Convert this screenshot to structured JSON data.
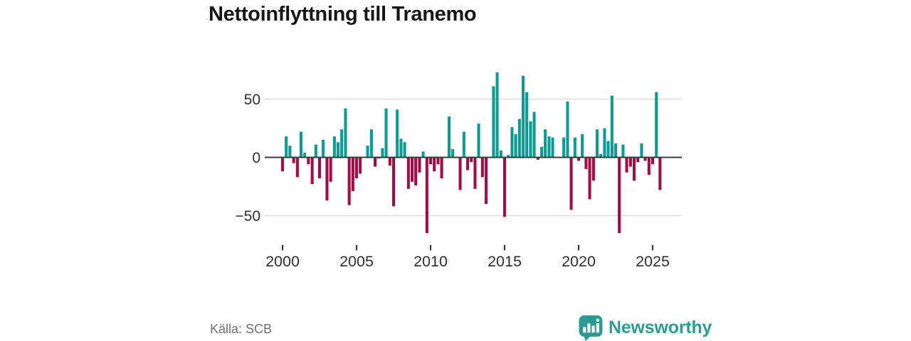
{
  "title": "Nettoinflyttning till Tranemo",
  "footer": {
    "source": "Källa: SCB",
    "brand": "Newsworthy"
  },
  "chart_data": {
    "type": "bar",
    "title": "Nettoinflyttning till Tranemo",
    "frequency": "quarterly",
    "start_period": "2000 Q1",
    "end_period": "2025 Q3",
    "values": [
      -12,
      18,
      10,
      -5,
      -17,
      22,
      4,
      -6,
      -23,
      11,
      -18,
      15,
      -37,
      -21,
      18,
      13,
      24,
      42,
      -41,
      -29,
      -18,
      -14,
      0,
      10,
      24,
      -8,
      -1,
      8,
      42,
      -7,
      -42,
      41,
      16,
      13,
      -27,
      -21,
      -24,
      -13,
      5,
      -65,
      -6,
      -12,
      -6,
      -18,
      0,
      35,
      7,
      0,
      -28,
      22,
      -11,
      -4,
      -27,
      29,
      -17,
      -40,
      0,
      61,
      73,
      6,
      -51,
      2,
      26,
      20,
      33,
      70,
      56,
      31,
      39,
      -2,
      9,
      24,
      18,
      17,
      0,
      0,
      17,
      48,
      -45,
      17,
      -3,
      20,
      -10,
      -36,
      -20,
      24,
      3,
      25,
      14,
      53,
      12,
      -65,
      11,
      -13,
      -8,
      -20,
      -4,
      12,
      -3,
      -15,
      -6,
      56,
      -28
    ],
    "positive_color": "#0d9b94",
    "negative_color": "#a30d45",
    "grid_color": "#dcdcdc",
    "axis_color": "#3b3b3b",
    "label_color": "#303030",
    "y_ticks": [
      50,
      0,
      -50
    ],
    "y_tick_labels": [
      "50",
      "0",
      "−50"
    ],
    "x_tick_years": [
      "2000",
      "2005",
      "2010",
      "2015",
      "2020",
      "2025"
    ],
    "x_tick_quarter_indices": [
      0,
      20,
      40,
      60,
      80,
      100
    ],
    "ylim": [
      -70,
      78
    ],
    "grid": "horizontal",
    "legend": "none"
  }
}
